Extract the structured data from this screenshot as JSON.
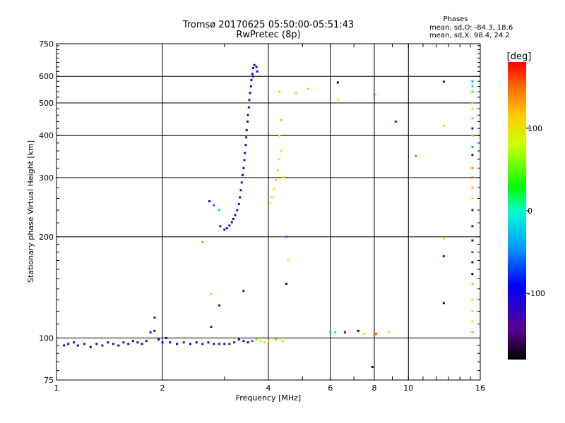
{
  "header": {
    "title_line1": "Tromsø 20170625 05:50:00-05:51:43",
    "title_line2": "RwPretec (8p)",
    "stats_title": "Phases",
    "stats_o": "mean, sd,O: -84.3, 18.6",
    "stats_x": "mean, sd,X:  98.4, 24.2"
  },
  "chart_data": {
    "type": "scatter",
    "xlabel": "Frequency [MHz]",
    "ylabel": "Stationary phase Virtual Height [km]",
    "xscale": "log",
    "yscale": "log",
    "xlim": [
      1,
      16
    ],
    "ylim": [
      75,
      750
    ],
    "x_ticks": [
      1,
      2,
      4,
      6,
      8,
      10,
      16
    ],
    "y_ticks": [
      75,
      100,
      200,
      300,
      400,
      500,
      600,
      750
    ],
    "grid": true,
    "colorbar": {
      "label": "[deg]",
      "range": [
        -180,
        180
      ],
      "ticks": [
        100,
        0,
        -100
      ]
    },
    "series": [
      {
        "color_by": "phase [deg]",
        "points": [
          [
            1.05,
            95,
            -110
          ],
          [
            1.08,
            96,
            -100
          ],
          [
            1.12,
            97,
            -115
          ],
          [
            1.15,
            95,
            -95
          ],
          [
            1.2,
            96,
            -120
          ],
          [
            1.25,
            94,
            -105
          ],
          [
            1.3,
            96,
            -110
          ],
          [
            1.35,
            95,
            -125
          ],
          [
            1.4,
            97,
            -100
          ],
          [
            1.45,
            96,
            -110
          ],
          [
            1.5,
            95,
            -90
          ],
          [
            1.55,
            97,
            -115
          ],
          [
            1.6,
            96,
            -105
          ],
          [
            1.65,
            98,
            -100
          ],
          [
            1.7,
            97,
            -120
          ],
          [
            1.75,
            96,
            -110
          ],
          [
            1.8,
            98,
            -95
          ],
          [
            1.85,
            104,
            -110
          ],
          [
            1.9,
            105,
            -115
          ],
          [
            1.95,
            99,
            -90
          ],
          [
            2.0,
            97,
            -105
          ],
          [
            2.05,
            100,
            -95
          ],
          [
            2.1,
            97,
            -110
          ],
          [
            2.2,
            96,
            -100
          ],
          [
            2.3,
            97,
            -120
          ],
          [
            2.4,
            96,
            -105
          ],
          [
            2.5,
            97,
            -95
          ],
          [
            2.6,
            96,
            -115
          ],
          [
            2.7,
            97,
            -100
          ],
          [
            2.8,
            96,
            -140
          ],
          [
            2.9,
            96,
            -145
          ],
          [
            3.0,
            96,
            -150
          ],
          [
            3.1,
            96,
            -140
          ],
          [
            3.2,
            97,
            -120
          ],
          [
            3.3,
            99,
            -110
          ],
          [
            3.4,
            98,
            -90
          ],
          [
            3.5,
            97,
            -150
          ],
          [
            3.6,
            98,
            -60
          ],
          [
            3.7,
            99,
            60
          ],
          [
            3.8,
            98,
            90
          ],
          [
            3.9,
            97,
            110
          ],
          [
            4.0,
            98,
            100
          ],
          [
            4.2,
            99,
            120
          ],
          [
            4.4,
            98,
            110
          ],
          [
            1.9,
            115,
            -130
          ],
          [
            2.92,
            215,
            -130
          ],
          [
            3.0,
            210,
            -135
          ],
          [
            3.05,
            212,
            -125
          ],
          [
            3.1,
            216,
            -140
          ],
          [
            3.15,
            221,
            -130
          ],
          [
            3.18,
            226,
            -120
          ],
          [
            3.22,
            232,
            -130
          ],
          [
            3.26,
            240,
            -120
          ],
          [
            3.3,
            250,
            -110
          ],
          [
            3.32,
            262,
            -120
          ],
          [
            3.34,
            275,
            -110
          ],
          [
            3.36,
            290,
            -120
          ],
          [
            3.38,
            305,
            -115
          ],
          [
            3.4,
            320,
            -110
          ],
          [
            3.42,
            338,
            -120
          ],
          [
            3.43,
            355,
            -115
          ],
          [
            3.45,
            375,
            -110
          ],
          [
            3.46,
            395,
            -120
          ],
          [
            3.47,
            415,
            -115
          ],
          [
            3.49,
            440,
            -120
          ],
          [
            3.5,
            460,
            -110
          ],
          [
            3.52,
            485,
            -115
          ],
          [
            3.53,
            510,
            -120
          ],
          [
            3.55,
            535,
            -110
          ],
          [
            3.57,
            560,
            -115
          ],
          [
            3.58,
            585,
            -120
          ],
          [
            3.6,
            610,
            -110
          ],
          [
            3.62,
            635,
            -115
          ],
          [
            3.65,
            648,
            -120
          ],
          [
            3.7,
            640,
            -110
          ],
          [
            3.72,
            620,
            -115
          ],
          [
            3.62,
            600,
            -105
          ],
          [
            4.05,
            252,
            95
          ],
          [
            4.1,
            262,
            100
          ],
          [
            4.15,
            278,
            110
          ],
          [
            4.2,
            295,
            105
          ],
          [
            4.25,
            315,
            110
          ],
          [
            4.3,
            340,
            100
          ],
          [
            4.35,
            360,
            110
          ],
          [
            4.3,
            400,
            90
          ],
          [
            4.35,
            445,
            120
          ],
          [
            4.4,
            300,
            100
          ],
          [
            2.72,
            255,
            -120
          ],
          [
            2.8,
            248,
            -60
          ],
          [
            2.9,
            240,
            -20
          ],
          [
            2.6,
            193,
            140
          ],
          [
            2.75,
            135,
            120
          ],
          [
            2.9,
            125,
            -130
          ],
          [
            2.75,
            108,
            -130
          ],
          [
            3.4,
            138,
            -150
          ],
          [
            4.3,
            540,
            95
          ],
          [
            4.8,
            535,
            110
          ],
          [
            5.2,
            550,
            120
          ],
          [
            6.3,
            512,
            95
          ],
          [
            6.3,
            575,
            -170
          ],
          [
            8.0,
            530,
            -40
          ],
          [
            9.2,
            440,
            -80
          ],
          [
            10.5,
            348,
            150
          ],
          [
            12.6,
            578,
            -160
          ],
          [
            12.6,
            428,
            100
          ],
          [
            12.6,
            198,
            95
          ],
          [
            12.6,
            175,
            -140
          ],
          [
            12.6,
            127,
            -170
          ],
          [
            4.5,
            200,
            -60
          ],
          [
            4.55,
            170,
            110
          ],
          [
            4.5,
            145,
            -160
          ],
          [
            6.0,
            104,
            20
          ],
          [
            6.2,
            104,
            -20
          ],
          [
            6.6,
            104,
            -150
          ],
          [
            7.2,
            105,
            -170
          ],
          [
            7.5,
            103,
            110
          ],
          [
            8.0,
            102,
            150
          ],
          [
            8.1,
            103,
            160
          ],
          [
            8.8,
            104,
            110
          ],
          [
            7.9,
            82,
            -170
          ],
          [
            15.2,
            580,
            -40
          ],
          [
            15.2,
            560,
            -10
          ],
          [
            15.2,
            540,
            20
          ],
          [
            15.2,
            500,
            60
          ],
          [
            15.2,
            480,
            100
          ],
          [
            15.2,
            450,
            120
          ],
          [
            15.2,
            420,
            -110
          ],
          [
            15.2,
            400,
            60
          ],
          [
            15.2,
            370,
            -40
          ],
          [
            15.2,
            350,
            -120
          ],
          [
            15.2,
            320,
            140
          ],
          [
            15.2,
            300,
            150
          ],
          [
            15.2,
            280,
            130
          ],
          [
            15.2,
            260,
            110
          ],
          [
            15.2,
            240,
            -100
          ],
          [
            15.2,
            215,
            -130
          ],
          [
            15.2,
            195,
            -100
          ],
          [
            15.2,
            180,
            -60
          ],
          [
            15.2,
            168,
            -150
          ],
          [
            15.2,
            155,
            -170
          ],
          [
            15.2,
            145,
            120
          ],
          [
            15.2,
            130,
            110
          ],
          [
            15.2,
            120,
            100
          ],
          [
            15.2,
            112,
            90
          ],
          [
            15.2,
            104,
            40
          ]
        ]
      }
    ]
  }
}
